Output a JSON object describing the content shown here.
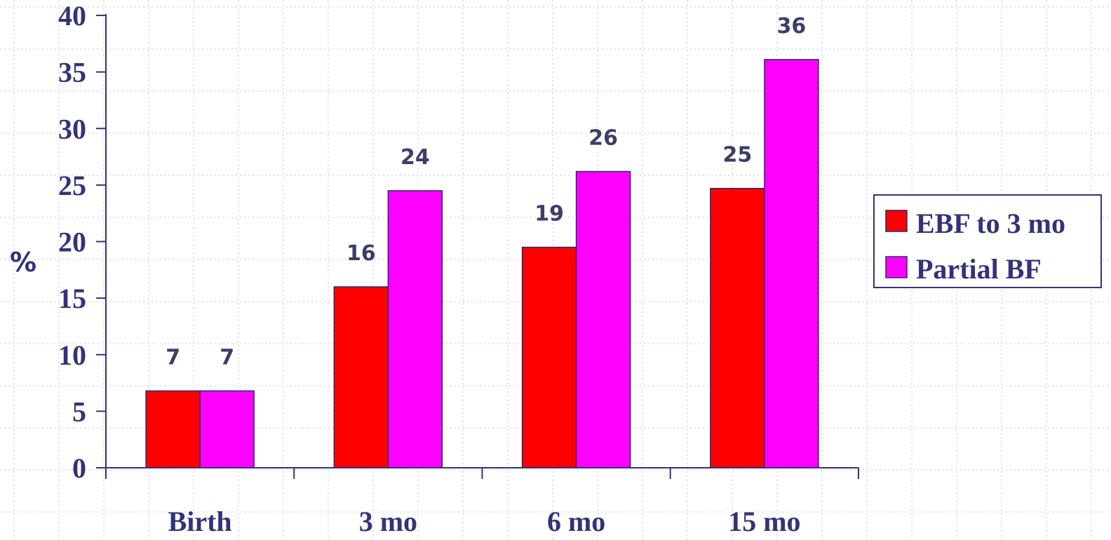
{
  "chart_data": {
    "type": "bar",
    "title": "",
    "xlabel": "",
    "ylabel": "%",
    "ylim": [
      0,
      40
    ],
    "yticks": [
      "0",
      "5",
      "10",
      "15",
      "20",
      "25",
      "30",
      "35",
      "40"
    ],
    "categories": [
      "Birth",
      "3 mo",
      "6 mo",
      "15 mo"
    ],
    "series": [
      {
        "name": "EBF to 3 mo",
        "values": [
          6.8,
          16,
          19.5,
          24.7
        ],
        "labels": [
          "7",
          "16",
          "19",
          "25"
        ],
        "color": "#ff0000"
      },
      {
        "name": "Partial BF",
        "values": [
          6.8,
          24.5,
          26.2,
          36.1
        ],
        "labels": [
          "7",
          "24",
          "26",
          "36"
        ],
        "color": "#ff00ff"
      }
    ],
    "grid": true,
    "legend_position": "right",
    "colors": {
      "axis": "#33337a",
      "grid": "#b8c4e0",
      "bar_border": "#2a2a6a"
    }
  }
}
